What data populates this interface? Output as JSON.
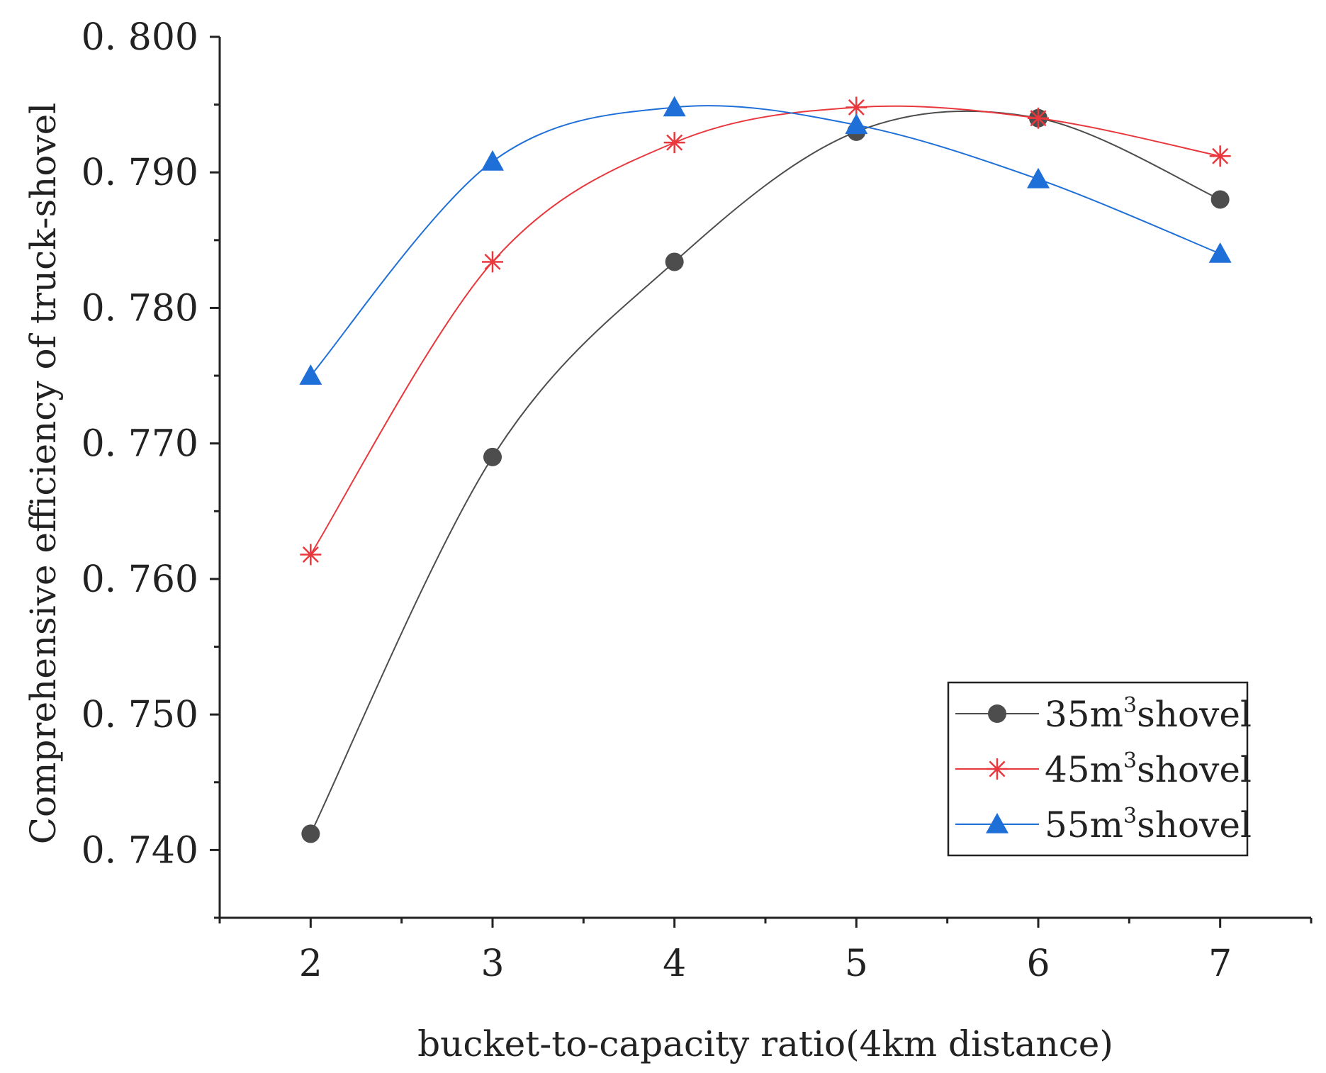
{
  "chart_data": {
    "type": "line",
    "xlabel": "bucket-to-capacity ratio(4km distance)",
    "ylabel": "Comprehensive efficiency of truck-shovel",
    "x": [
      2,
      3,
      4,
      5,
      6,
      7
    ],
    "xlim": [
      1.5,
      7.5
    ],
    "ylim": [
      0.735,
      0.8
    ],
    "xticks": [
      2,
      3,
      4,
      5,
      6,
      7
    ],
    "xtick_labels": [
      "2",
      "3",
      "4",
      "5",
      "6",
      "7"
    ],
    "yticks": [
      0.74,
      0.75,
      0.76,
      0.77,
      0.78,
      0.79,
      0.8
    ],
    "ytick_labels": [
      "0. 740",
      "0. 750",
      "0. 760",
      "0. 770",
      "0. 780",
      "0. 790",
      "0. 800"
    ],
    "grid": false,
    "legend_position": "bottom-right",
    "series": [
      {
        "name": "35m³shovel",
        "label_main": "35m",
        "label_sup": "3",
        "label_tail": "shovel",
        "color": "#4d4d4d",
        "marker": "circle",
        "values": [
          0.7412,
          0.769,
          0.7834,
          0.793,
          0.794,
          0.788
        ]
      },
      {
        "name": "45m³shovel",
        "label_main": "45m",
        "label_sup": "3",
        "label_tail": "shovel",
        "color": "#e8383d",
        "marker": "asterisk",
        "values": [
          0.7618,
          0.7834,
          0.7922,
          0.7948,
          0.794,
          0.7912
        ]
      },
      {
        "name": "55m³shovel",
        "label_main": "55m",
        "label_sup": "3",
        "label_tail": "shovel",
        "color": "#1f6fd8",
        "marker": "triangle",
        "values": [
          0.775,
          0.7908,
          0.7948,
          0.7935,
          0.7895,
          0.784
        ]
      }
    ]
  }
}
